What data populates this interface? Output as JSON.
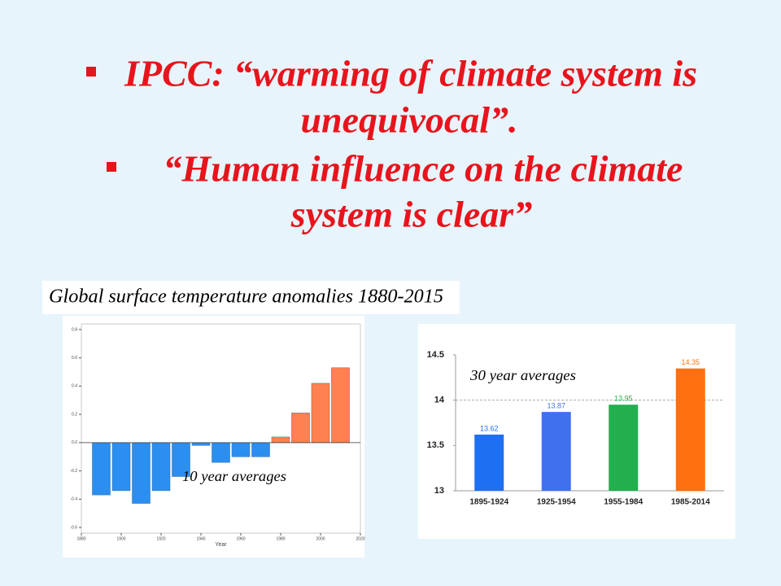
{
  "slide": {
    "bullets": [
      {
        "lines": [
          "IPCC: “warming of climate system is",
          "unequivocal”."
        ]
      },
      {
        "lines": [
          "“Human influence on the climate",
          "system is clear”"
        ]
      }
    ]
  },
  "chart_data": [
    {
      "type": "bar",
      "title": "Global surface temperature anomalies 1880-2015",
      "annotation": "10 year averages",
      "x_label": "Year",
      "x": [
        1890,
        1900,
        1910,
        1920,
        1930,
        1940,
        1950,
        1960,
        1970,
        1980,
        1990,
        2000,
        2010
      ],
      "values": [
        -0.37,
        -0.34,
        -0.43,
        -0.34,
        -0.24,
        -0.02,
        -0.14,
        -0.1,
        -0.1,
        0.04,
        0.21,
        0.42,
        0.53
      ],
      "colors": [
        "#2a8ff0",
        "#2a8ff0",
        "#2a8ff0",
        "#2a8ff0",
        "#2a8ff0",
        "#2a8ff0",
        "#2a8ff0",
        "#2a8ff0",
        "#2a8ff0",
        "#ff8050",
        "#ff8050",
        "#ff8050",
        "#ff8050"
      ],
      "xlim": [
        1880,
        2020
      ],
      "xticks": [
        1880,
        1900,
        1920,
        1940,
        1960,
        1980,
        2000,
        2020
      ],
      "ylim": [
        -0.64,
        0.84
      ],
      "yticks": [
        0.8,
        0.6,
        0.4,
        0.2,
        {
          "value": 0,
          "label": "0.0"
        },
        -0.2,
        -0.4,
        -0.6
      ]
    },
    {
      "type": "column",
      "annotation": "30 year averages",
      "categories": [
        "1895-1924",
        "1925-1954",
        "1955-1984",
        "1985-2014"
      ],
      "values": [
        13.62,
        13.87,
        13.95,
        14.35
      ],
      "colors": [
        "#1f6ff2",
        "#4170ef",
        "#22b04e",
        "#ff7010"
      ],
      "ylim": [
        13,
        14.5
      ],
      "yticks": [
        13,
        13.5,
        14,
        14.5
      ],
      "hline": 14
    }
  ]
}
